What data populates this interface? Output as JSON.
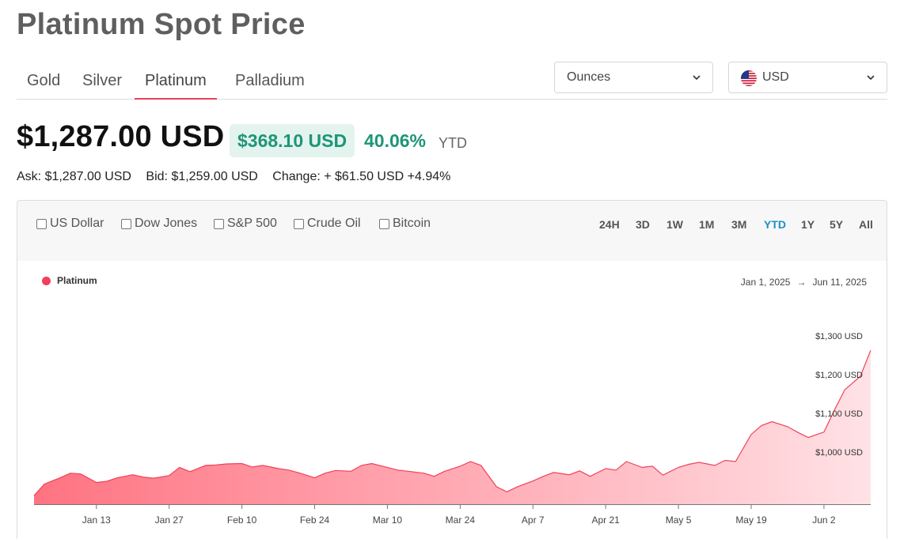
{
  "page": {
    "title": "Platinum Spot Price"
  },
  "metal_tabs": [
    {
      "label": "Gold",
      "active": false
    },
    {
      "label": "Silver",
      "active": false
    },
    {
      "label": "Platinum",
      "active": true
    },
    {
      "label": "Palladium",
      "active": false
    }
  ],
  "unit_select": {
    "value": "Ounces"
  },
  "currency_select": {
    "value": "USD",
    "flag_icon": "us-flag-icon"
  },
  "price": {
    "main": "$1,287.00 USD",
    "change_amount": "$368.10 USD",
    "change_percent": "40.06%",
    "period": "YTD"
  },
  "quote": {
    "ask": "Ask: $1,287.00 USD",
    "bid": "Bid: $1,259.00 USD",
    "change": "Change: + $61.50 USD +4.94%"
  },
  "compare_options": [
    "US Dollar",
    "Dow Jones",
    "S&P 500",
    "Crude Oil",
    "Bitcoin"
  ],
  "ranges": [
    {
      "label": "24H",
      "active": false
    },
    {
      "label": "3D",
      "active": false
    },
    {
      "label": "1W",
      "active": false
    },
    {
      "label": "1M",
      "active": false
    },
    {
      "label": "3M",
      "active": false
    },
    {
      "label": "YTD",
      "active": true
    },
    {
      "label": "1Y",
      "active": false
    },
    {
      "label": "5Y",
      "active": false
    },
    {
      "label": "All",
      "active": false
    }
  ],
  "colors": {
    "accent": "#e8435a",
    "positive": "#1e9577",
    "active_range": "#1a8fc9",
    "series": "#f0415a"
  },
  "chart_data": {
    "type": "area",
    "legend": [
      "Platinum"
    ],
    "date_from": "Jan 1, 2025",
    "date_to": "Jun 11, 2025",
    "date_arrow": "→",
    "x_ticks": [
      "Jan 13",
      "Jan 27",
      "Feb 10",
      "Feb 24",
      "Mar 10",
      "Mar 24",
      "Apr 7",
      "Apr 21",
      "May 5",
      "May 19",
      "Jun 2"
    ],
    "y_ticks": [
      {
        "value": 1000,
        "label": "$1,000 USD"
      },
      {
        "value": 1100,
        "label": "$1,100 USD"
      },
      {
        "value": 1200,
        "label": "$1,200 USD"
      },
      {
        "value": 1300,
        "label": "$1,300 USD"
      }
    ],
    "ylim": [
      890,
      1322
    ],
    "grid": false,
    "series": [
      {
        "name": "Platinum",
        "x": [
          "2025-01-01",
          "2025-01-03",
          "2025-01-06",
          "2025-01-08",
          "2025-01-10",
          "2025-01-13",
          "2025-01-15",
          "2025-01-17",
          "2025-01-20",
          "2025-01-22",
          "2025-01-24",
          "2025-01-27",
          "2025-01-29",
          "2025-01-31",
          "2025-02-03",
          "2025-02-05",
          "2025-02-07",
          "2025-02-10",
          "2025-02-12",
          "2025-02-14",
          "2025-02-17",
          "2025-02-19",
          "2025-02-21",
          "2025-02-24",
          "2025-02-26",
          "2025-02-28",
          "2025-03-03",
          "2025-03-05",
          "2025-03-07",
          "2025-03-10",
          "2025-03-12",
          "2025-03-14",
          "2025-03-17",
          "2025-03-19",
          "2025-03-21",
          "2025-03-24",
          "2025-03-26",
          "2025-03-28",
          "2025-03-31",
          "2025-04-02",
          "2025-04-04",
          "2025-04-07",
          "2025-04-09",
          "2025-04-11",
          "2025-04-14",
          "2025-04-16",
          "2025-04-18",
          "2025-04-21",
          "2025-04-23",
          "2025-04-25",
          "2025-04-28",
          "2025-04-30",
          "2025-05-02",
          "2025-05-05",
          "2025-05-07",
          "2025-05-09",
          "2025-05-12",
          "2025-05-14",
          "2025-05-16",
          "2025-05-19",
          "2025-05-21",
          "2025-05-23",
          "2025-05-26",
          "2025-05-28",
          "2025-05-30",
          "2025-06-02",
          "2025-06-04",
          "2025-06-06",
          "2025-06-09",
          "2025-06-11"
        ],
        "values": [
          912,
          942,
          958,
          970,
          968,
          946,
          949,
          958,
          966,
          960,
          957,
          964,
          985,
          974,
          990,
          991,
          994,
          995,
          986,
          990,
          982,
          978,
          971,
          958,
          970,
          977,
          975,
          990,
          995,
          985,
          978,
          975,
          970,
          962,
          975,
          988,
          1000,
          990,
          935,
          922,
          935,
          950,
          962,
          972,
          966,
          976,
          962,
          982,
          978,
          1000,
          985,
          988,
          965,
          985,
          993,
          998,
          990,
          1003,
          1000,
          1070,
          1093,
          1103,
          1090,
          1075,
          1062,
          1076,
          1132,
          1185,
          1220,
          1287
        ]
      }
    ]
  }
}
